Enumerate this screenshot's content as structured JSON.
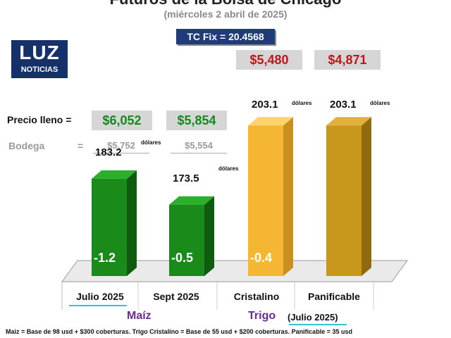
{
  "header": {
    "title": "Futuros de la Bolsa de Chicago",
    "subtitle": "(miércoles 2 abril de 2025)",
    "tc_fix": "TC Fix = 20.4568"
  },
  "logo": {
    "line1": "LUZ",
    "line2": "NOTICIAS"
  },
  "labels": {
    "precio_lleno": "Precio lleno =",
    "bodega": "Bodega",
    "equals": "="
  },
  "trigo_prices": [
    "$5,480",
    "$4,871"
  ],
  "precio_lleno": [
    "$6,052",
    "$5,854"
  ],
  "bodega": [
    "$5,752",
    "$5,554"
  ],
  "groups": {
    "maiz": "Maíz",
    "trigo": "Trigo",
    "trigo_note": "(Julio 2025)"
  },
  "footer": "Maiz = Base de 98 usd + $300 coberturas. Trigo Cristalino = Base de 55 usd + $200 coberturas. Panificable = 35 usd",
  "colors": {
    "maiz": "#1a8a1a",
    "cristalino": "#f5b733",
    "panificable": "#c9971c",
    "price_red": "#c0151d",
    "price_green": "#138a1b"
  },
  "chart_data": {
    "type": "bar",
    "categories": [
      "Julio 2025",
      "Sept 2025",
      "Cristalino",
      "Panificable"
    ],
    "values": [
      183.2,
      173.5,
      203.1,
      203.1
    ],
    "value_labels": [
      "183.2",
      "173.5",
      "203.1",
      "203.1"
    ],
    "unit": "dólares",
    "changes": [
      "-1.2",
      "-0.5",
      "-0.4",
      ""
    ],
    "title": "Futuros de la Bolsa de Chicago",
    "xlabel": "",
    "ylabel": ""
  }
}
